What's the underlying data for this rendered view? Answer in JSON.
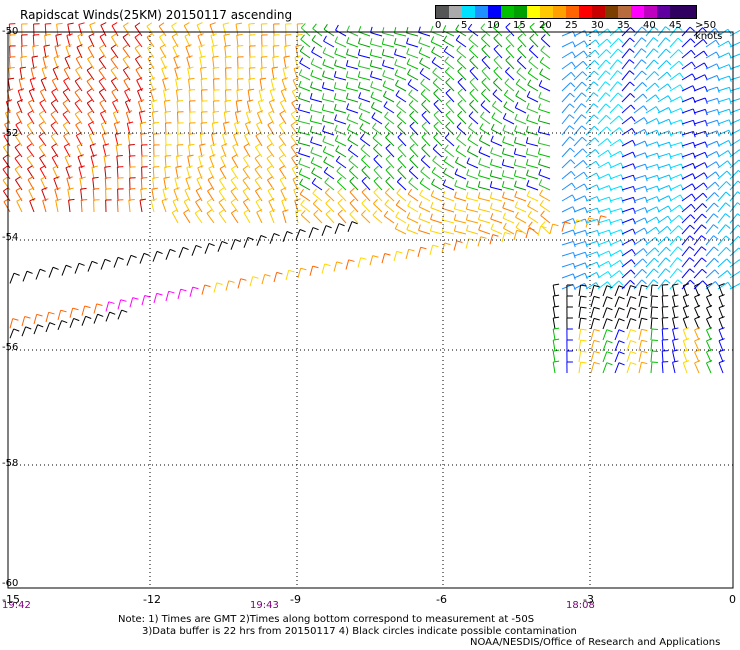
{
  "title": "Rapidscat Winds(25KM) 20150117 ascending",
  "legend": {
    "labels": [
      "0",
      "5",
      "10",
      "15",
      "20",
      "25",
      "30",
      "35",
      "40",
      "45",
      ">50 knots"
    ],
    "colors": [
      "#555555",
      "#aaaaaa",
      "#00e0ff",
      "#1e90ff",
      "#0000ff",
      "#00c000",
      "#00a000",
      "#ffff00",
      "#ffc800",
      "#ffa000",
      "#ff6400",
      "#ff0000",
      "#c80000",
      "#7b3f00",
      "#b86b3c",
      "#ff00ff",
      "#c000c0",
      "#6000a0",
      "#300060",
      "#300060"
    ]
  },
  "axes": {
    "lat_labels": [
      "-50",
      "-52",
      "-54",
      "-56",
      "-58",
      "-60"
    ],
    "lon_labels": [
      "-15",
      "-12",
      "-9",
      "-6",
      "-3",
      "0"
    ],
    "time_labels": [
      "19:42",
      "19:43",
      "18:08"
    ]
  },
  "notes": {
    "line1": "Note: 1) Times are GMT 2)Times along bottom correspond to measurement at -50S",
    "line2": "3)Data buffer is 22 hrs from 20150117 4) Black circles indicate possible contamination"
  },
  "credit": "NOAA/NESDIS/Office of Research and Applications"
}
